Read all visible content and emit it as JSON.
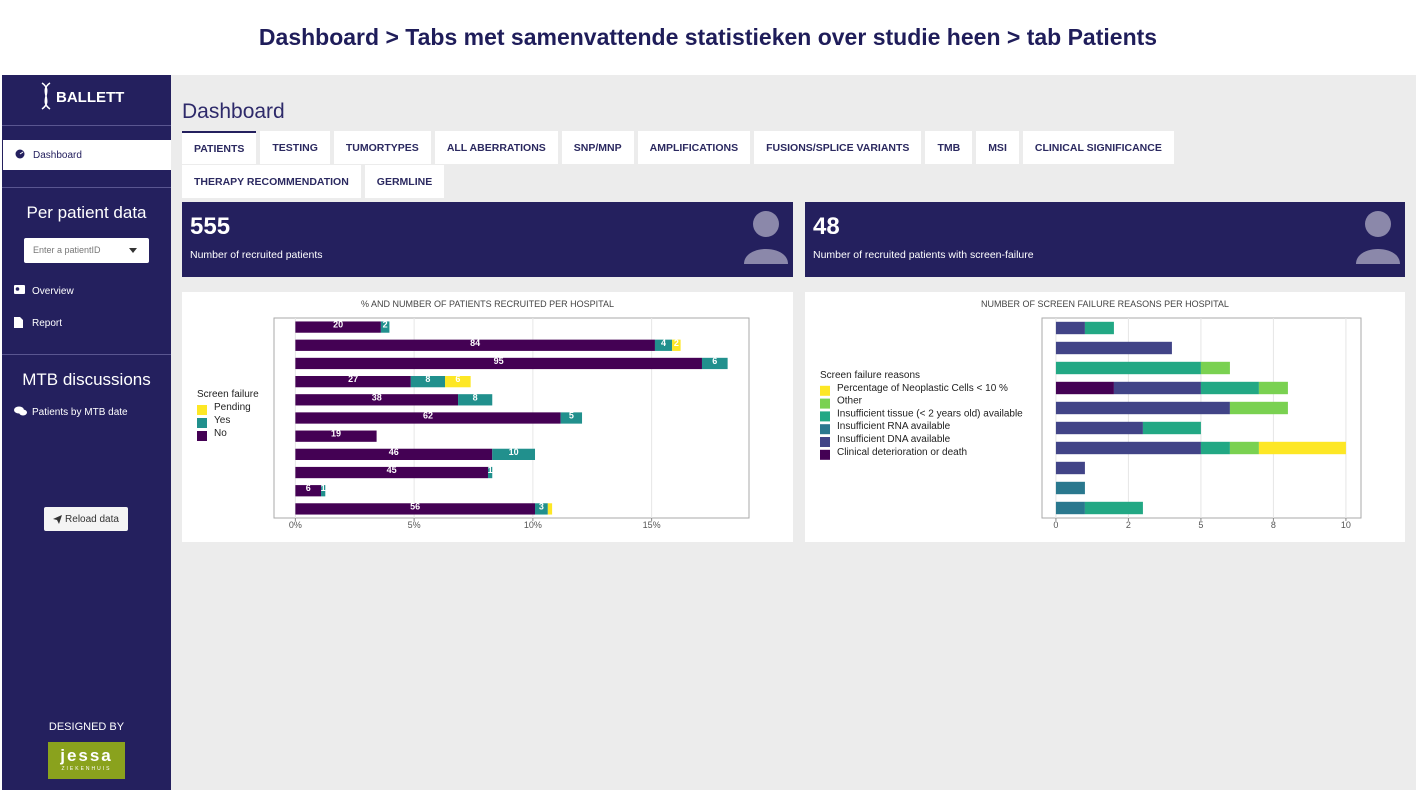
{
  "header": {
    "title": "Dashboard > Tabs met samenvattende statistieken over studie heen > tab Patients"
  },
  "sidebar": {
    "logo": "BALLETT",
    "menu": [
      "Dashboard"
    ],
    "sections": [
      {
        "title": "Per patient data",
        "input_placeholder": "Enter a patientID",
        "items": [
          "Overview",
          "Report"
        ]
      },
      {
        "title": "MTB discussions",
        "items": [
          "Patients by MTB date"
        ]
      }
    ],
    "button": "Reload data",
    "designed_by": "DESIGNED BY",
    "partner_logo": {
      "name": "jessa",
      "subtitle": "ZIEKENHUIS"
    }
  },
  "main": {
    "heading": "Dashboard",
    "tabs": [
      "PATIENTS",
      "TESTING",
      "TUMORTYPES",
      "ALL ABERRATIONS",
      "SNP/MNP",
      "AMPLIFICATIONS",
      "FUSIONS/SPLICE VARIANTS",
      "TMB",
      "MSI",
      "CLINICAL SIGNIFICANCE",
      "THERAPY RECOMMENDATION",
      "GERMLINE"
    ],
    "value_boxes": [
      {
        "value": 555,
        "label": "Number of recruited patients"
      },
      {
        "value": 48,
        "label": "Number of recruited patients with screen-failure"
      }
    ]
  },
  "chart_data": [
    {
      "type": "bar",
      "title": "% AND NUMBER OF PATIENTS RECRUITED PER HOSPITAL",
      "legend_title": "Screen failure",
      "categories": [
        null,
        null,
        null,
        null,
        null,
        null,
        null,
        null,
        null,
        null,
        null
      ],
      "series": [
        {
          "name": "Pending",
          "color": "#fde725",
          "values": [
            null,
            0.36,
            null,
            1.08,
            null,
            null,
            null,
            null,
            null,
            null,
            0.18
          ],
          "value_labels": [
            null,
            "2",
            null,
            "6",
            null,
            null,
            null,
            null,
            null,
            null,
            null
          ]
        },
        {
          "name": "Yes",
          "color": "#21908d",
          "values": [
            0.36,
            0.72,
            1.08,
            1.44,
            1.44,
            0.9,
            null,
            1.8,
            0.18,
            0.18,
            0.54
          ],
          "value_labels": [
            "2",
            "4",
            "6",
            "8",
            "8",
            "5",
            null,
            "10",
            "1",
            "1",
            "3"
          ]
        },
        {
          "name": "No",
          "color": "#440154",
          "values": [
            3.6,
            15.14,
            17.12,
            4.86,
            6.85,
            11.17,
            3.42,
            8.29,
            8.11,
            1.08,
            10.09
          ],
          "value_labels": [
            "20",
            "84",
            "95",
            "27",
            "38",
            "62",
            "19",
            "46",
            "45",
            "6",
            "56"
          ]
        }
      ],
      "xlim": [
        -0.9,
        19.1
      ],
      "xticks": [
        {
          "value": 0,
          "label": "0%"
        },
        {
          "value": 5,
          "label": "5%"
        },
        {
          "value": 10,
          "label": "10%"
        },
        {
          "value": 15,
          "label": "15%"
        }
      ],
      "grid": true
    },
    {
      "type": "bar",
      "title": "NUMBER OF SCREEN FAILURE REASONS PER HOSPITAL",
      "legend_title": "Screen failure reasons",
      "categories": [
        null,
        null,
        null,
        null,
        null,
        null,
        null,
        null,
        null,
        null
      ],
      "series": [
        {
          "name": "Percentage of Neoplastic Cells < 10 %",
          "color": "#fde725",
          "values": [
            null,
            null,
            null,
            null,
            null,
            null,
            3,
            null,
            null,
            null
          ]
        },
        {
          "name": "Other",
          "color": "#7ad151",
          "values": [
            null,
            null,
            1,
            1,
            2,
            null,
            1,
            null,
            null,
            null
          ]
        },
        {
          "name": "Insufficient tissue (< 2 years old) available",
          "color": "#22a884",
          "values": [
            1,
            null,
            5,
            2,
            null,
            2,
            1,
            null,
            null,
            2
          ]
        },
        {
          "name": "Insufficient RNA available",
          "color": "#2a788e",
          "values": [
            null,
            null,
            null,
            null,
            null,
            null,
            null,
            null,
            1,
            1
          ]
        },
        {
          "name": "Insufficient DNA available",
          "color": "#414487",
          "values": [
            1,
            4,
            null,
            3,
            6,
            3,
            5,
            1,
            null,
            null
          ]
        },
        {
          "name": "Clinical deterioration or death",
          "color": "#440154",
          "values": [
            null,
            null,
            null,
            2,
            null,
            null,
            null,
            null,
            null,
            null
          ]
        }
      ],
      "xlim": [
        -0.48,
        10.52
      ],
      "xticks": [
        0,
        {
          "value": 2.5,
          "label": "2"
        },
        5,
        {
          "value": 7.5,
          "label": "8"
        },
        10
      ],
      "grid": true
    }
  ]
}
